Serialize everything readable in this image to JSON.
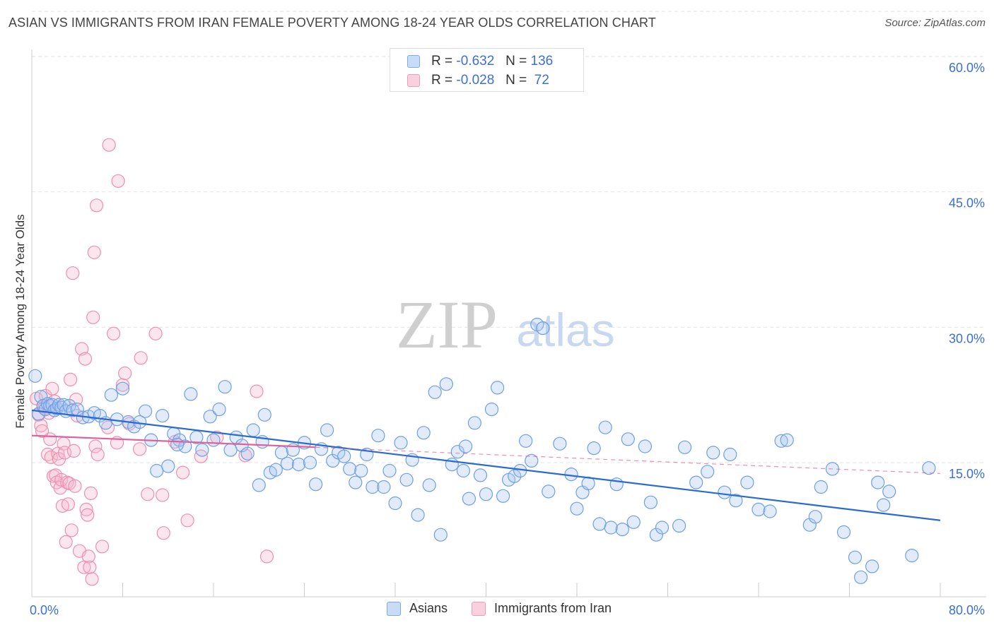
{
  "title": "ASIAN VS IMMIGRANTS FROM IRAN FEMALE POVERTY AMONG 18-24 YEAR OLDS CORRELATION CHART",
  "source": "Source: ZipAtlas.com",
  "watermark": {
    "zip": "ZIP",
    "atlas": "atlas"
  },
  "legend": {
    "rows": [
      {
        "r_label": "R =",
        "r_value": "-0.632",
        "n_label": "N =",
        "n_value": "136"
      },
      {
        "r_label": "R =",
        "r_value": "-0.028",
        "n_label": "N =",
        "n_value": " 72"
      }
    ]
  },
  "bottom_legend": {
    "series1": "Asians",
    "series2": "Immigrants from Iran"
  },
  "chart_data": {
    "type": "scatter",
    "title": "ASIAN VS IMMIGRANTS FROM IRAN FEMALE POVERTY AMONG 18-24 YEAR OLDS CORRELATION CHART",
    "xlabel": "",
    "ylabel": "Female Poverty Among 18-24 Year Olds",
    "xlim": [
      0,
      80
    ],
    "ylim": [
      0,
      65
    ],
    "x_tick_labels": [
      "0.0%",
      "80.0%"
    ],
    "y_ticks": [
      15,
      30,
      45,
      60
    ],
    "y_tick_labels": [
      "15.0%",
      "30.0%",
      "45.0%",
      "60.0%"
    ],
    "grid": true,
    "colors": {
      "asians": "#6f9fe6",
      "iran": "#f09ab6",
      "asians_line": "#2a6bd1",
      "iran_line": "#e0609a",
      "tick_text": "#3b6fd4"
    },
    "series": [
      {
        "name": "Asians",
        "r": -0.632,
        "n": 136,
        "trend": {
          "x": [
            0,
            80
          ],
          "y": [
            20.8,
            8.6
          ],
          "style": "solid"
        },
        "points": [
          [
            0.3,
            24.6
          ],
          [
            0.6,
            20.4
          ],
          [
            0.8,
            22.3
          ],
          [
            1.0,
            21.3
          ],
          [
            1.2,
            20.9
          ],
          [
            1.4,
            21.5
          ],
          [
            1.6,
            21.3
          ],
          [
            1.8,
            21.4
          ],
          [
            2.0,
            20.8
          ],
          [
            2.2,
            21.0
          ],
          [
            2.4,
            21.4
          ],
          [
            2.6,
            21.1
          ],
          [
            2.8,
            21.4
          ],
          [
            3.0,
            20.7
          ],
          [
            3.3,
            21.3
          ],
          [
            3.6,
            20.8
          ],
          [
            4.0,
            20.9
          ],
          [
            4.5,
            20.0
          ],
          [
            5.0,
            20.1
          ],
          [
            5.5,
            20.5
          ],
          [
            6.0,
            20.2
          ],
          [
            6.5,
            19.4
          ],
          [
            7.0,
            22.5
          ],
          [
            7.5,
            19.8
          ],
          [
            8.0,
            23.2
          ],
          [
            8.5,
            19.5
          ],
          [
            9.0,
            19.0
          ],
          [
            9.5,
            19.5
          ],
          [
            10.0,
            20.7
          ],
          [
            10.5,
            17.5
          ],
          [
            11.0,
            14.1
          ],
          [
            11.5,
            20.2
          ],
          [
            12.0,
            14.6
          ],
          [
            12.5,
            18.2
          ],
          [
            13.0,
            17.5
          ],
          [
            13.5,
            16.8
          ],
          [
            14.0,
            22.6
          ],
          [
            14.5,
            17.8
          ],
          [
            15.0,
            16.4
          ],
          [
            15.7,
            20.1
          ],
          [
            16.0,
            17.5
          ],
          [
            16.5,
            20.9
          ],
          [
            17.0,
            23.4
          ],
          [
            17.5,
            16.4
          ],
          [
            18.0,
            17.8
          ],
          [
            18.5,
            16.9
          ],
          [
            19.0,
            16.0
          ],
          [
            19.5,
            18.6
          ],
          [
            20.0,
            12.5
          ],
          [
            20.5,
            20.3
          ],
          [
            21.0,
            13.9
          ],
          [
            21.5,
            14.2
          ],
          [
            22.0,
            16.1
          ],
          [
            22.5,
            14.9
          ],
          [
            23.0,
            16.4
          ],
          [
            23.5,
            14.8
          ],
          [
            24.0,
            17.2
          ],
          [
            24.5,
            15.0
          ],
          [
            25.0,
            12.6
          ],
          [
            25.5,
            16.5
          ],
          [
            26.0,
            18.6
          ],
          [
            26.5,
            15.2
          ],
          [
            27.0,
            16.1
          ],
          [
            27.5,
            15.7
          ],
          [
            28.0,
            14.3
          ],
          [
            28.5,
            12.8
          ],
          [
            29.0,
            14.1
          ],
          [
            29.5,
            15.9
          ],
          [
            30.0,
            12.3
          ],
          [
            30.5,
            18.0
          ],
          [
            31.0,
            12.3
          ],
          [
            31.5,
            14.1
          ],
          [
            32.0,
            10.5
          ],
          [
            32.5,
            17.2
          ],
          [
            33.0,
            13.1
          ],
          [
            33.5,
            15.3
          ],
          [
            34.0,
            9.2
          ],
          [
            34.5,
            18.3
          ],
          [
            35.0,
            12.5
          ],
          [
            35.5,
            22.8
          ],
          [
            36.0,
            7.0
          ],
          [
            36.5,
            23.7
          ],
          [
            37.0,
            14.8
          ],
          [
            37.5,
            16.2
          ],
          [
            38.0,
            14.1
          ],
          [
            38.5,
            11.0
          ],
          [
            39.0,
            19.4
          ],
          [
            39.5,
            13.6
          ],
          [
            40.0,
            11.5
          ],
          [
            40.5,
            20.9
          ],
          [
            41.0,
            23.3
          ],
          [
            41.5,
            11.3
          ],
          [
            42.0,
            13.1
          ],
          [
            42.5,
            13.5
          ],
          [
            43.0,
            14.1
          ],
          [
            43.5,
            17.4
          ],
          [
            44.0,
            15.2
          ],
          [
            44.5,
            30.3
          ],
          [
            45.0,
            29.9
          ],
          [
            45.5,
            11.8
          ],
          [
            46.5,
            17.1
          ],
          [
            47.5,
            13.7
          ],
          [
            48.0,
            9.9
          ],
          [
            48.5,
            11.7
          ],
          [
            49.0,
            12.7
          ],
          [
            49.5,
            16.6
          ],
          [
            50.0,
            8.2
          ],
          [
            50.5,
            18.9
          ],
          [
            51.0,
            7.8
          ],
          [
            51.5,
            12.6
          ],
          [
            52.0,
            7.6
          ],
          [
            52.5,
            17.6
          ],
          [
            53.0,
            8.4
          ],
          [
            54.0,
            16.8
          ],
          [
            54.5,
            10.6
          ],
          [
            55.0,
            7.0
          ],
          [
            55.5,
            7.8
          ],
          [
            57.0,
            8.0
          ],
          [
            57.5,
            16.7
          ],
          [
            58.5,
            12.8
          ],
          [
            59.5,
            14.0
          ],
          [
            60.0,
            16.1
          ],
          [
            61.0,
            11.7
          ],
          [
            61.5,
            15.9
          ],
          [
            62.0,
            10.8
          ],
          [
            63.0,
            12.8
          ],
          [
            64.0,
            9.8
          ],
          [
            65.0,
            9.6
          ],
          [
            66.0,
            17.4
          ],
          [
            66.5,
            17.5
          ],
          [
            68.5,
            8.1
          ],
          [
            69.0,
            9.0
          ],
          [
            69.5,
            12.3
          ],
          [
            70.5,
            14.3
          ],
          [
            71.5,
            7.3
          ],
          [
            72.5,
            4.5
          ],
          [
            73.0,
            2.3
          ],
          [
            74.0,
            3.5
          ],
          [
            75.0,
            10.3
          ],
          [
            75.5,
            11.8
          ],
          [
            79.0,
            14.4
          ],
          [
            77.5,
            4.7
          ],
          [
            74.5,
            12.8
          ],
          [
            38.2,
            16.8
          ],
          [
            20.3,
            17.3
          ],
          [
            12.8,
            17.0
          ]
        ]
      },
      {
        "name": "Immigrants from Iran",
        "r": -0.028,
        "n": 72,
        "trend": {
          "x": [
            0,
            25
          ],
          "y": [
            18.0,
            16.7
          ],
          "style": "solid"
        },
        "trend_ext": {
          "x": [
            25,
            80
          ],
          "y": [
            16.7,
            13.8
          ],
          "style": "dashed"
        },
        "points": [
          [
            0.4,
            22.1
          ],
          [
            0.6,
            20.3
          ],
          [
            0.8,
            19.1
          ],
          [
            1.0,
            21.2
          ],
          [
            1.2,
            22.4
          ],
          [
            1.4,
            15.9
          ],
          [
            1.5,
            20.5
          ],
          [
            1.6,
            17.6
          ],
          [
            1.7,
            15.6
          ],
          [
            1.8,
            23.2
          ],
          [
            1.9,
            13.5
          ],
          [
            2.0,
            21.8
          ],
          [
            2.1,
            13.6
          ],
          [
            2.2,
            12.8
          ],
          [
            2.3,
            16.0
          ],
          [
            2.4,
            15.4
          ],
          [
            2.5,
            12.2
          ],
          [
            2.6,
            13.1
          ],
          [
            2.7,
            10.2
          ],
          [
            2.8,
            17.1
          ],
          [
            2.9,
            16.1
          ],
          [
            3.0,
            6.2
          ],
          [
            3.1,
            12.8
          ],
          [
            3.2,
            10.4
          ],
          [
            3.3,
            12.7
          ],
          [
            3.4,
            24.2
          ],
          [
            3.5,
            7.5
          ],
          [
            3.6,
            36.0
          ],
          [
            3.7,
            16.3
          ],
          [
            3.8,
            12.4
          ],
          [
            3.9,
            22.0
          ],
          [
            4.0,
            20.2
          ],
          [
            4.2,
            5.2
          ],
          [
            4.4,
            27.6
          ],
          [
            4.6,
            3.4
          ],
          [
            4.7,
            26.5
          ],
          [
            4.8,
            9.8
          ],
          [
            4.9,
            9.2
          ],
          [
            5.0,
            4.6
          ],
          [
            5.1,
            3.4
          ],
          [
            5.2,
            11.6
          ],
          [
            5.3,
            2.1
          ],
          [
            5.4,
            31.1
          ],
          [
            5.5,
            38.3
          ],
          [
            5.6,
            16.8
          ],
          [
            5.7,
            43.5
          ],
          [
            5.8,
            15.9
          ],
          [
            6.2,
            5.7
          ],
          [
            6.7,
            18.9
          ],
          [
            6.8,
            50.2
          ],
          [
            7.2,
            29.3
          ],
          [
            7.5,
            17.2
          ],
          [
            7.6,
            46.2
          ],
          [
            8.0,
            23.6
          ],
          [
            8.2,
            24.9
          ],
          [
            8.6,
            19.3
          ],
          [
            9.5,
            16.5
          ],
          [
            9.6,
            26.6
          ],
          [
            10.2,
            11.5
          ],
          [
            10.9,
            29.3
          ],
          [
            11.5,
            11.4
          ],
          [
            11.6,
            7.2
          ],
          [
            12.6,
            17.3
          ],
          [
            13.3,
            13.9
          ],
          [
            13.7,
            8.6
          ],
          [
            14.9,
            15.7
          ],
          [
            16.3,
            17.8
          ],
          [
            18.8,
            15.8
          ],
          [
            19.8,
            22.9
          ],
          [
            20.7,
            4.6
          ],
          [
            1.1,
            21.0
          ],
          [
            0.9,
            18.5
          ]
        ]
      }
    ]
  }
}
